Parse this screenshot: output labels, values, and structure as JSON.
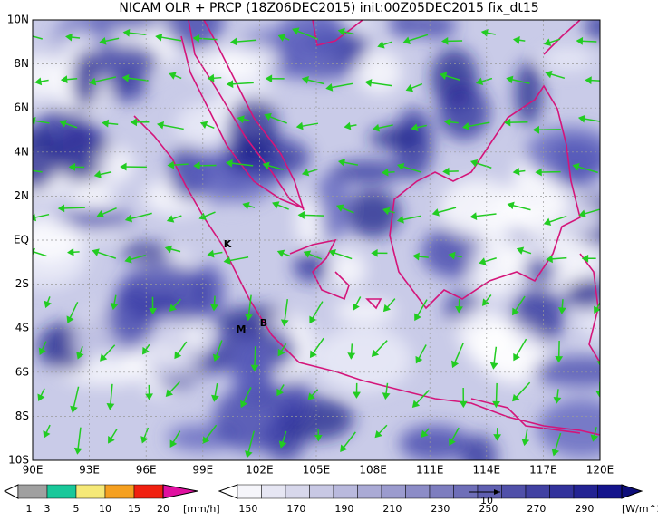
{
  "map": {
    "title": "NICAM OLR + PRCP (18Z06DEC2015) init:00Z05DEC2015 fix_dt15",
    "lat_labels": [
      "10N",
      "8N",
      "6N",
      "4N",
      "2N",
      "EQ",
      "2S",
      "4S",
      "6S",
      "8S",
      "10S"
    ],
    "lon_labels": [
      "90E",
      "93E",
      "96E",
      "99E",
      "102E",
      "105E",
      "108E",
      "111E",
      "114E",
      "117E",
      "120E"
    ],
    "place_markers": [
      "K",
      "M",
      "B"
    ]
  },
  "precip_legend": {
    "labels": [
      "1",
      "3",
      "5",
      "10",
      "15",
      "20"
    ],
    "unit": "[mm/h]"
  },
  "olr_legend": {
    "labels": [
      "150",
      "170",
      "190",
      "210",
      "230",
      "250",
      "270",
      "290"
    ],
    "unit": "[W/m^2]",
    "vector_label": "10"
  }
}
